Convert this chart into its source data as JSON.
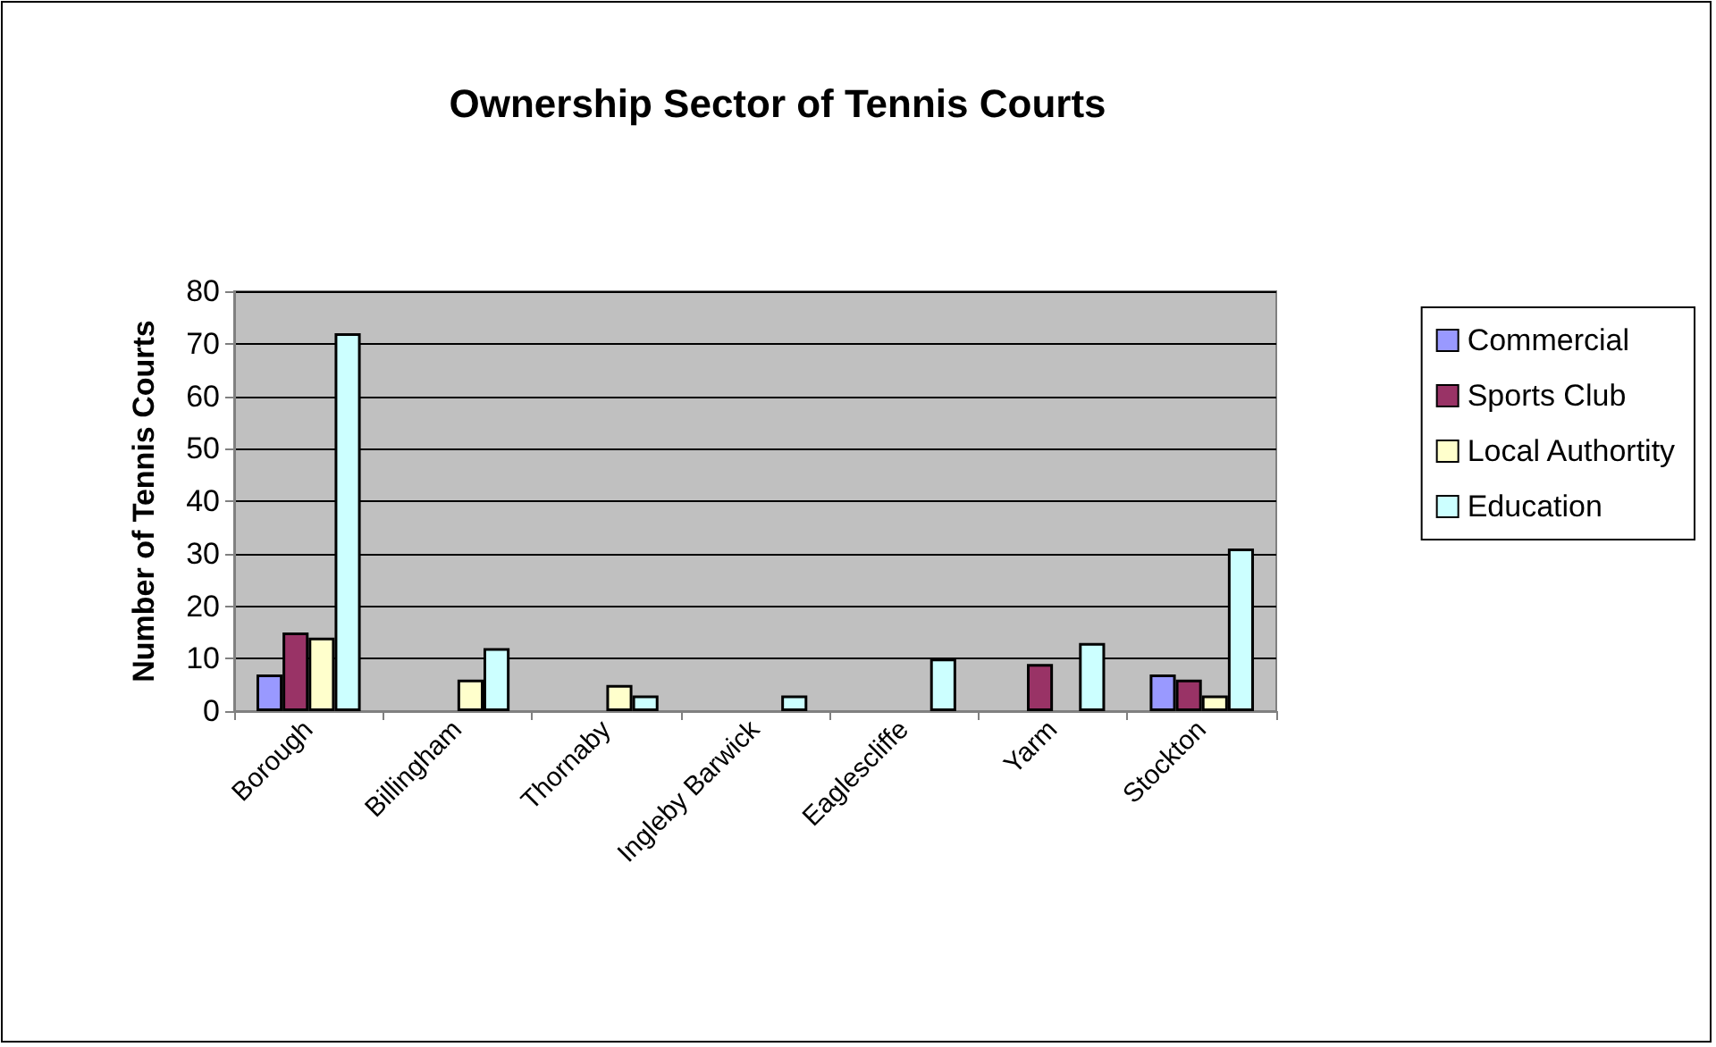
{
  "chart_data": {
    "type": "bar",
    "title": "Ownership Sector of Tennis Courts",
    "ylabel": "Number of Tennis Courts",
    "categories": [
      "Borough",
      "Billingham",
      "Thornaby",
      "Ingleby Barwick",
      "Eaglescliffe",
      "Yarm",
      "Stockton"
    ],
    "series": [
      {
        "name": "Commercial",
        "color": "#9999ff",
        "values": [
          7,
          null,
          null,
          null,
          null,
          null,
          7
        ]
      },
      {
        "name": "Sports Club",
        "color": "#993366",
        "values": [
          15,
          null,
          null,
          null,
          null,
          9,
          6
        ]
      },
      {
        "name": "Local Authortity",
        "color": "#ffffcc",
        "values": [
          14,
          6,
          5,
          null,
          null,
          null,
          3
        ]
      },
      {
        "name": "Education",
        "color": "#ccffff",
        "values": [
          72,
          12,
          3,
          3,
          10,
          13,
          31
        ]
      }
    ],
    "ylim": [
      0,
      80
    ],
    "yticks": [
      0,
      10,
      20,
      30,
      40,
      50,
      60,
      70,
      80
    ],
    "grid": "y",
    "legend": "right"
  }
}
